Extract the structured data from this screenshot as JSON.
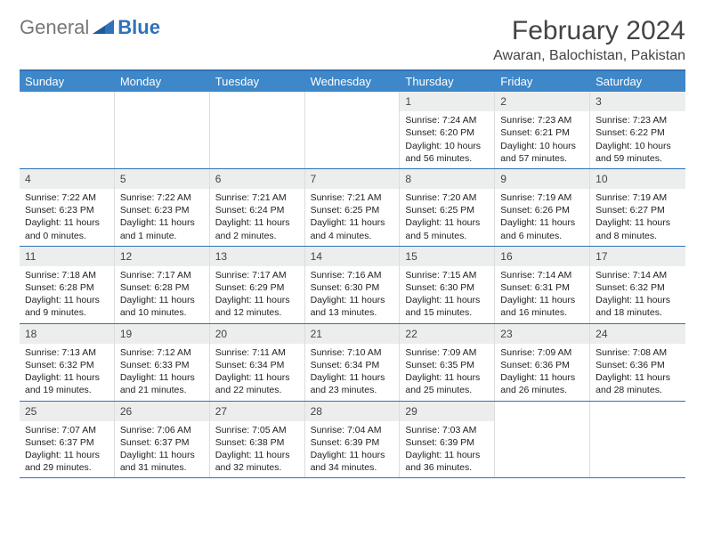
{
  "brand": {
    "part1": "General",
    "part2": "Blue"
  },
  "header": {
    "month_title": "February 2024",
    "location": "Awaran, Balochistan, Pakistan"
  },
  "style": {
    "accent": "#3e87c8",
    "rule": "#2f72b8",
    "daybg": "#eceded",
    "text": "#222222"
  },
  "day_names": [
    "Sunday",
    "Monday",
    "Tuesday",
    "Wednesday",
    "Thursday",
    "Friday",
    "Saturday"
  ],
  "weeks": [
    [
      {
        "blank": true
      },
      {
        "blank": true
      },
      {
        "blank": true
      },
      {
        "blank": true
      },
      {
        "day": "1",
        "sunrise": "Sunrise: 7:24 AM",
        "sunset": "Sunset: 6:20 PM",
        "daylight1": "Daylight: 10 hours",
        "daylight2": "and 56 minutes."
      },
      {
        "day": "2",
        "sunrise": "Sunrise: 7:23 AM",
        "sunset": "Sunset: 6:21 PM",
        "daylight1": "Daylight: 10 hours",
        "daylight2": "and 57 minutes."
      },
      {
        "day": "3",
        "sunrise": "Sunrise: 7:23 AM",
        "sunset": "Sunset: 6:22 PM",
        "daylight1": "Daylight: 10 hours",
        "daylight2": "and 59 minutes."
      }
    ],
    [
      {
        "day": "4",
        "sunrise": "Sunrise: 7:22 AM",
        "sunset": "Sunset: 6:23 PM",
        "daylight1": "Daylight: 11 hours",
        "daylight2": "and 0 minutes."
      },
      {
        "day": "5",
        "sunrise": "Sunrise: 7:22 AM",
        "sunset": "Sunset: 6:23 PM",
        "daylight1": "Daylight: 11 hours",
        "daylight2": "and 1 minute."
      },
      {
        "day": "6",
        "sunrise": "Sunrise: 7:21 AM",
        "sunset": "Sunset: 6:24 PM",
        "daylight1": "Daylight: 11 hours",
        "daylight2": "and 2 minutes."
      },
      {
        "day": "7",
        "sunrise": "Sunrise: 7:21 AM",
        "sunset": "Sunset: 6:25 PM",
        "daylight1": "Daylight: 11 hours",
        "daylight2": "and 4 minutes."
      },
      {
        "day": "8",
        "sunrise": "Sunrise: 7:20 AM",
        "sunset": "Sunset: 6:25 PM",
        "daylight1": "Daylight: 11 hours",
        "daylight2": "and 5 minutes."
      },
      {
        "day": "9",
        "sunrise": "Sunrise: 7:19 AM",
        "sunset": "Sunset: 6:26 PM",
        "daylight1": "Daylight: 11 hours",
        "daylight2": "and 6 minutes."
      },
      {
        "day": "10",
        "sunrise": "Sunrise: 7:19 AM",
        "sunset": "Sunset: 6:27 PM",
        "daylight1": "Daylight: 11 hours",
        "daylight2": "and 8 minutes."
      }
    ],
    [
      {
        "day": "11",
        "sunrise": "Sunrise: 7:18 AM",
        "sunset": "Sunset: 6:28 PM",
        "daylight1": "Daylight: 11 hours",
        "daylight2": "and 9 minutes."
      },
      {
        "day": "12",
        "sunrise": "Sunrise: 7:17 AM",
        "sunset": "Sunset: 6:28 PM",
        "daylight1": "Daylight: 11 hours",
        "daylight2": "and 10 minutes."
      },
      {
        "day": "13",
        "sunrise": "Sunrise: 7:17 AM",
        "sunset": "Sunset: 6:29 PM",
        "daylight1": "Daylight: 11 hours",
        "daylight2": "and 12 minutes."
      },
      {
        "day": "14",
        "sunrise": "Sunrise: 7:16 AM",
        "sunset": "Sunset: 6:30 PM",
        "daylight1": "Daylight: 11 hours",
        "daylight2": "and 13 minutes."
      },
      {
        "day": "15",
        "sunrise": "Sunrise: 7:15 AM",
        "sunset": "Sunset: 6:30 PM",
        "daylight1": "Daylight: 11 hours",
        "daylight2": "and 15 minutes."
      },
      {
        "day": "16",
        "sunrise": "Sunrise: 7:14 AM",
        "sunset": "Sunset: 6:31 PM",
        "daylight1": "Daylight: 11 hours",
        "daylight2": "and 16 minutes."
      },
      {
        "day": "17",
        "sunrise": "Sunrise: 7:14 AM",
        "sunset": "Sunset: 6:32 PM",
        "daylight1": "Daylight: 11 hours",
        "daylight2": "and 18 minutes."
      }
    ],
    [
      {
        "day": "18",
        "sunrise": "Sunrise: 7:13 AM",
        "sunset": "Sunset: 6:32 PM",
        "daylight1": "Daylight: 11 hours",
        "daylight2": "and 19 minutes."
      },
      {
        "day": "19",
        "sunrise": "Sunrise: 7:12 AM",
        "sunset": "Sunset: 6:33 PM",
        "daylight1": "Daylight: 11 hours",
        "daylight2": "and 21 minutes."
      },
      {
        "day": "20",
        "sunrise": "Sunrise: 7:11 AM",
        "sunset": "Sunset: 6:34 PM",
        "daylight1": "Daylight: 11 hours",
        "daylight2": "and 22 minutes."
      },
      {
        "day": "21",
        "sunrise": "Sunrise: 7:10 AM",
        "sunset": "Sunset: 6:34 PM",
        "daylight1": "Daylight: 11 hours",
        "daylight2": "and 23 minutes."
      },
      {
        "day": "22",
        "sunrise": "Sunrise: 7:09 AM",
        "sunset": "Sunset: 6:35 PM",
        "daylight1": "Daylight: 11 hours",
        "daylight2": "and 25 minutes."
      },
      {
        "day": "23",
        "sunrise": "Sunrise: 7:09 AM",
        "sunset": "Sunset: 6:36 PM",
        "daylight1": "Daylight: 11 hours",
        "daylight2": "and 26 minutes."
      },
      {
        "day": "24",
        "sunrise": "Sunrise: 7:08 AM",
        "sunset": "Sunset: 6:36 PM",
        "daylight1": "Daylight: 11 hours",
        "daylight2": "and 28 minutes."
      }
    ],
    [
      {
        "day": "25",
        "sunrise": "Sunrise: 7:07 AM",
        "sunset": "Sunset: 6:37 PM",
        "daylight1": "Daylight: 11 hours",
        "daylight2": "and 29 minutes."
      },
      {
        "day": "26",
        "sunrise": "Sunrise: 7:06 AM",
        "sunset": "Sunset: 6:37 PM",
        "daylight1": "Daylight: 11 hours",
        "daylight2": "and 31 minutes."
      },
      {
        "day": "27",
        "sunrise": "Sunrise: 7:05 AM",
        "sunset": "Sunset: 6:38 PM",
        "daylight1": "Daylight: 11 hours",
        "daylight2": "and 32 minutes."
      },
      {
        "day": "28",
        "sunrise": "Sunrise: 7:04 AM",
        "sunset": "Sunset: 6:39 PM",
        "daylight1": "Daylight: 11 hours",
        "daylight2": "and 34 minutes."
      },
      {
        "day": "29",
        "sunrise": "Sunrise: 7:03 AM",
        "sunset": "Sunset: 6:39 PM",
        "daylight1": "Daylight: 11 hours",
        "daylight2": "and 36 minutes."
      },
      {
        "blank": true
      },
      {
        "blank": true
      }
    ]
  ]
}
